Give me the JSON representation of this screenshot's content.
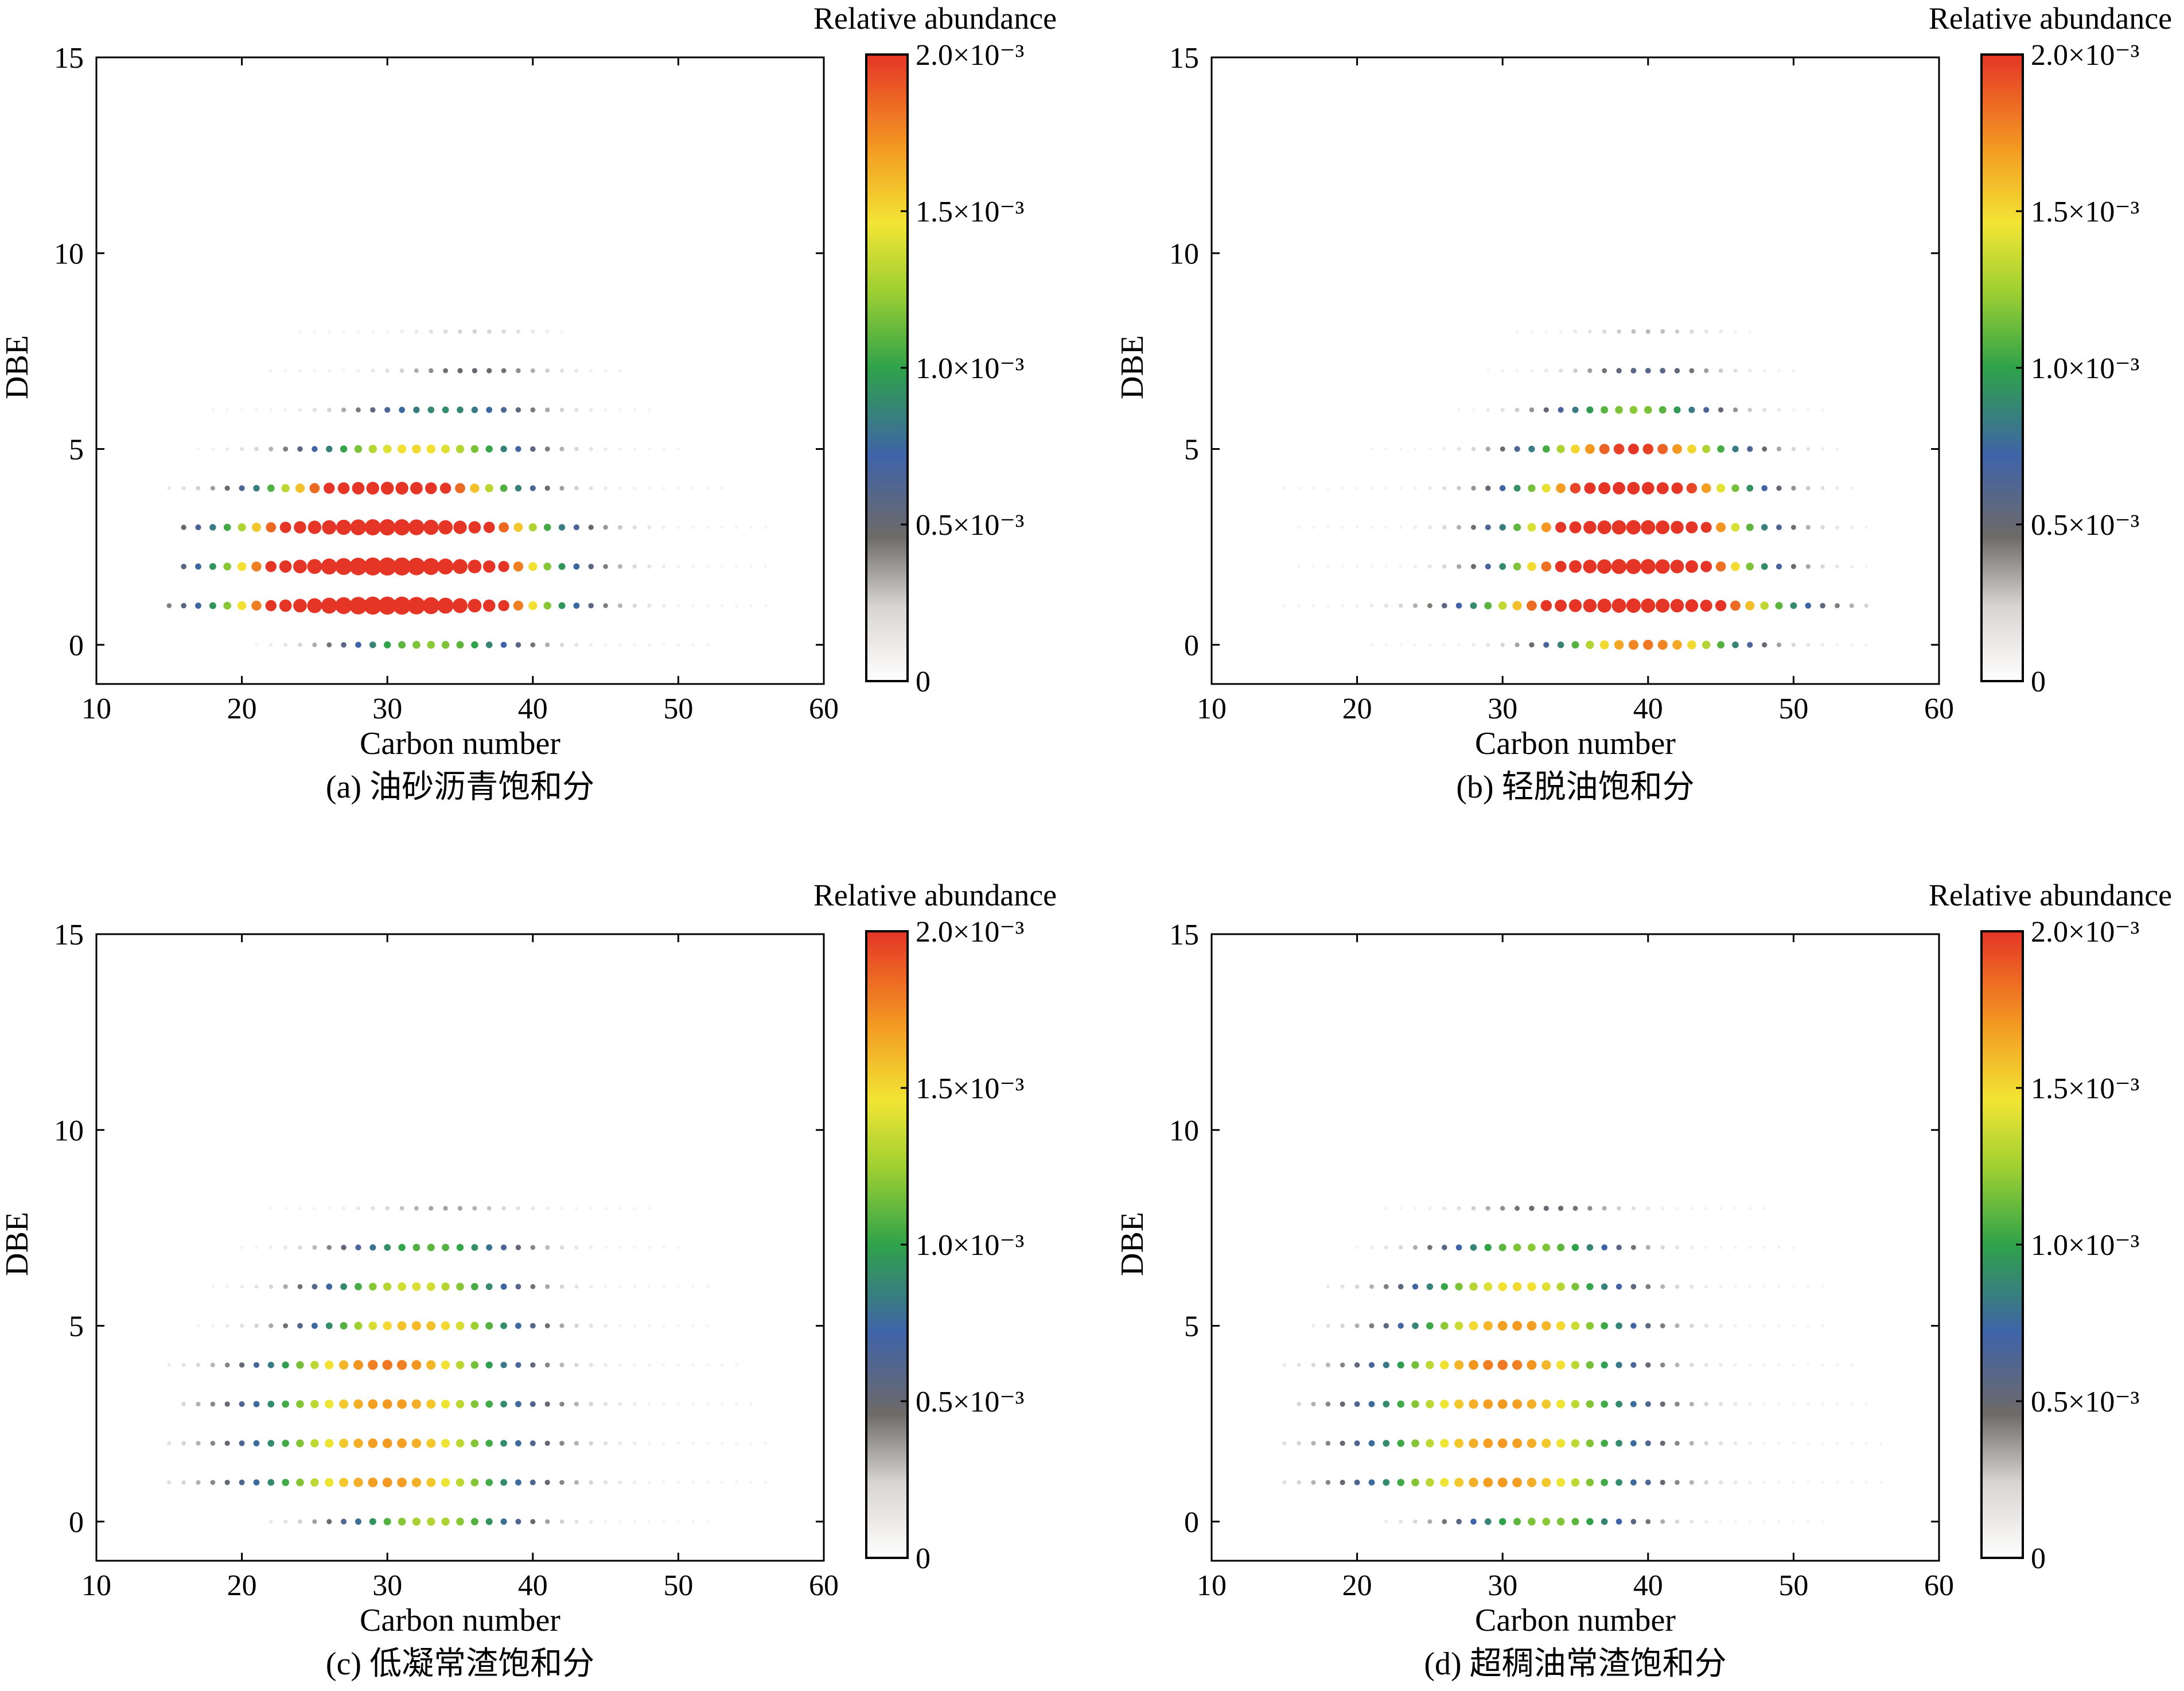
{
  "figure": {
    "panels": [
      {
        "id": "a",
        "caption": "(a) 油砂沥青饱和分"
      },
      {
        "id": "b",
        "caption": "(b) 轻脱油饱和分"
      },
      {
        "id": "c",
        "caption": "(c) 低凝常渣饱和分"
      },
      {
        "id": "d",
        "caption": "(d) 超稠油常渣饱和分"
      }
    ]
  },
  "chart_data": [
    {
      "type": "scatter",
      "panel": "a",
      "title": "(a) 油砂沥青饱和分",
      "xlabel": "Carbon number",
      "ylabel": "DBE",
      "xlim": [
        10,
        60
      ],
      "ylim": [
        -1,
        15
      ],
      "xticks": [
        10,
        20,
        30,
        40,
        50,
        60
      ],
      "yticks": [
        0,
        5,
        10,
        15
      ],
      "colorbar": {
        "title": "Relative abundance",
        "range": [
          0,
          0.002
        ],
        "tick_labels": [
          "0",
          "0.5×10⁻³",
          "1.0×10⁻³",
          "1.5×10⁻³",
          "2.0×10⁻³"
        ],
        "stops": [
          "#ffffff",
          "#d8d4d2",
          "#6e6a68",
          "#3f63a8",
          "#2fa24a",
          "#9ccf32",
          "#f2e534",
          "#f39a22",
          "#e53527"
        ]
      },
      "series_rows": [
        {
          "dbe": 0,
          "c_min": 21,
          "c_max": 52,
          "center": 33,
          "peak": 1.2,
          "spread": 7
        },
        {
          "dbe": 1,
          "c_min": 15,
          "c_max": 56,
          "center": 30,
          "peak": 4.0,
          "spread": 10
        },
        {
          "dbe": 2,
          "c_min": 16,
          "c_max": 56,
          "center": 30,
          "peak": 4.0,
          "spread": 10
        },
        {
          "dbe": 3,
          "c_min": 16,
          "c_max": 56,
          "center": 30,
          "peak": 3.5,
          "spread": 10
        },
        {
          "dbe": 4,
          "c_min": 15,
          "c_max": 53,
          "center": 30,
          "peak": 2.6,
          "spread": 8.5
        },
        {
          "dbe": 5,
          "c_min": 17,
          "c_max": 50,
          "center": 32,
          "peak": 1.5,
          "spread": 8
        },
        {
          "dbe": 6,
          "c_min": 18,
          "c_max": 48,
          "center": 34,
          "peak": 0.9,
          "spread": 7
        },
        {
          "dbe": 7,
          "c_min": 22,
          "c_max": 46,
          "center": 36,
          "peak": 0.5,
          "spread": 6
        },
        {
          "dbe": 8,
          "c_min": 24,
          "c_max": 42,
          "center": 36,
          "peak": 0.25,
          "spread": 5
        }
      ]
    },
    {
      "type": "scatter",
      "panel": "b",
      "title": "(b) 轻脱油饱和分",
      "xlabel": "Carbon number",
      "ylabel": "DBE",
      "xlim": [
        10,
        60
      ],
      "ylim": [
        -1,
        15
      ],
      "xticks": [
        10,
        20,
        30,
        40,
        50,
        60
      ],
      "yticks": [
        0,
        5,
        10,
        15
      ],
      "colorbar": {
        "title": "Relative abundance",
        "range": [
          0,
          0.002
        ],
        "tick_labels": [
          "0",
          "0.5×10⁻³",
          "1.0×10⁻³",
          "1.5×10⁻³",
          "2.0×10⁻³"
        ],
        "stops": [
          "#ffffff",
          "#d8d4d2",
          "#6e6a68",
          "#3f63a8",
          "#2fa24a",
          "#9ccf32",
          "#f2e534",
          "#f39a22",
          "#e53527"
        ]
      },
      "series_rows": [
        {
          "dbe": 0,
          "c_min": 21,
          "c_max": 55,
          "center": 40,
          "peak": 1.8,
          "spread": 7
        },
        {
          "dbe": 1,
          "c_min": 15,
          "c_max": 55,
          "center": 39,
          "peak": 3.0,
          "spread": 10
        },
        {
          "dbe": 2,
          "c_min": 16,
          "c_max": 55,
          "center": 39,
          "peak": 3.2,
          "spread": 8
        },
        {
          "dbe": 3,
          "c_min": 16,
          "c_max": 55,
          "center": 39,
          "peak": 3.0,
          "spread": 8
        },
        {
          "dbe": 4,
          "c_min": 15,
          "c_max": 54,
          "center": 39,
          "peak": 2.5,
          "spread": 8
        },
        {
          "dbe": 5,
          "c_min": 21,
          "c_max": 53,
          "center": 39,
          "peak": 2.0,
          "spread": 7.5
        },
        {
          "dbe": 6,
          "c_min": 27,
          "c_max": 52,
          "center": 39,
          "peak": 1.2,
          "spread": 6.5
        },
        {
          "dbe": 7,
          "c_min": 29,
          "c_max": 50,
          "center": 40,
          "peak": 0.6,
          "spread": 5.5
        },
        {
          "dbe": 8,
          "c_min": 31,
          "c_max": 47,
          "center": 40,
          "peak": 0.3,
          "spread": 5
        }
      ]
    },
    {
      "type": "scatter",
      "panel": "c",
      "title": "(c) 低凝常渣饱和分",
      "xlabel": "Carbon number",
      "ylabel": "DBE",
      "xlim": [
        10,
        60
      ],
      "ylim": [
        -1,
        15
      ],
      "xticks": [
        10,
        20,
        30,
        40,
        50,
        60
      ],
      "yticks": [
        0,
        5,
        10,
        15
      ],
      "colorbar": {
        "title": "Relative abundance",
        "range": [
          0,
          0.002
        ],
        "tick_labels": [
          "0",
          "0.5×10⁻³",
          "1.0×10⁻³",
          "1.5×10⁻³",
          "2.0×10⁻³"
        ],
        "stops": [
          "#ffffff",
          "#d8d4d2",
          "#6e6a68",
          "#3f63a8",
          "#2fa24a",
          "#9ccf32",
          "#f2e534",
          "#f39a22",
          "#e53527"
        ]
      },
      "series_rows": [
        {
          "dbe": 0,
          "c_min": 22,
          "c_max": 52,
          "center": 33,
          "peak": 1.3,
          "spread": 7
        },
        {
          "dbe": 1,
          "c_min": 15,
          "c_max": 56,
          "center": 30,
          "peak": 1.7,
          "spread": 10
        },
        {
          "dbe": 2,
          "c_min": 15,
          "c_max": 56,
          "center": 30,
          "peak": 1.7,
          "spread": 10
        },
        {
          "dbe": 3,
          "c_min": 16,
          "c_max": 55,
          "center": 30,
          "peak": 1.7,
          "spread": 10
        },
        {
          "dbe": 4,
          "c_min": 15,
          "c_max": 54,
          "center": 30,
          "peak": 1.8,
          "spread": 9
        },
        {
          "dbe": 5,
          "c_min": 17,
          "c_max": 52,
          "center": 32,
          "peak": 1.6,
          "spread": 8
        },
        {
          "dbe": 6,
          "c_min": 18,
          "c_max": 52,
          "center": 32,
          "peak": 1.4,
          "spread": 7.5
        },
        {
          "dbe": 7,
          "c_min": 20,
          "c_max": 50,
          "center": 33,
          "peak": 1.1,
          "spread": 7
        },
        {
          "dbe": 8,
          "c_min": 22,
          "c_max": 48,
          "center": 34,
          "peak": 0.35,
          "spread": 6
        }
      ]
    },
    {
      "type": "scatter",
      "panel": "d",
      "title": "(d) 超稠油常渣饱和分",
      "xlabel": "Carbon number",
      "ylabel": "DBE",
      "xlim": [
        10,
        60
      ],
      "ylim": [
        -1,
        15
      ],
      "xticks": [
        10,
        20,
        30,
        40,
        50,
        60
      ],
      "yticks": [
        0,
        5,
        10,
        15
      ],
      "colorbar": {
        "title": "Relative abundance",
        "range": [
          0,
          0.002
        ],
        "tick_labels": [
          "0",
          "0.5×10⁻³",
          "1.0×10⁻³",
          "1.5×10⁻³",
          "2.0×10⁻³"
        ],
        "stops": [
          "#ffffff",
          "#d8d4d2",
          "#6e6a68",
          "#3f63a8",
          "#2fa24a",
          "#9ccf32",
          "#f2e534",
          "#f39a22",
          "#e53527"
        ]
      },
      "series_rows": [
        {
          "dbe": 0,
          "c_min": 22,
          "c_max": 52,
          "center": 33,
          "peak": 1.2,
          "spread": 7
        },
        {
          "dbe": 1,
          "c_min": 15,
          "c_max": 56,
          "center": 30,
          "peak": 1.7,
          "spread": 10
        },
        {
          "dbe": 2,
          "c_min": 15,
          "c_max": 56,
          "center": 30,
          "peak": 1.7,
          "spread": 10
        },
        {
          "dbe": 3,
          "c_min": 16,
          "c_max": 55,
          "center": 30,
          "peak": 1.7,
          "spread": 10
        },
        {
          "dbe": 4,
          "c_min": 15,
          "c_max": 54,
          "center": 30,
          "peak": 1.8,
          "spread": 9
        },
        {
          "dbe": 5,
          "c_min": 17,
          "c_max": 52,
          "center": 31,
          "peak": 1.7,
          "spread": 8.5
        },
        {
          "dbe": 6,
          "c_min": 18,
          "c_max": 52,
          "center": 31,
          "peak": 1.5,
          "spread": 8
        },
        {
          "dbe": 7,
          "c_min": 20,
          "c_max": 50,
          "center": 32,
          "peak": 1.2,
          "spread": 7
        },
        {
          "dbe": 8,
          "c_min": 22,
          "c_max": 48,
          "center": 33,
          "peak": 0.5,
          "spread": 6
        }
      ]
    }
  ]
}
